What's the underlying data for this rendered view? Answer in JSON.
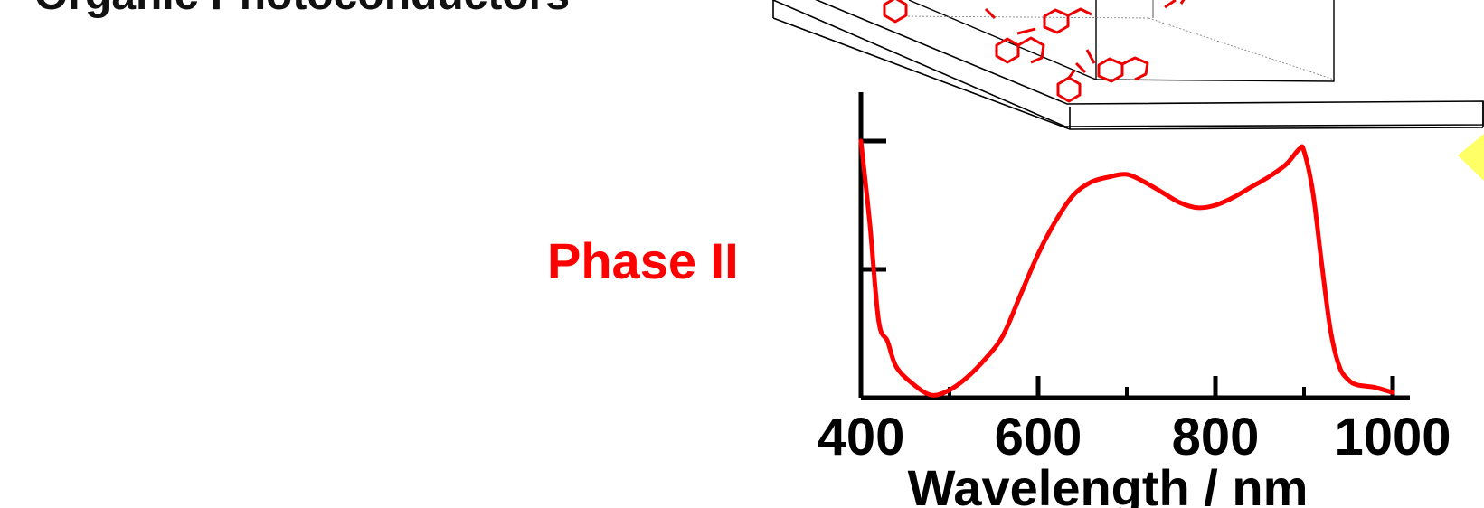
{
  "slide": {
    "heading_partial": "Organic Photoconductors",
    "phase_label": "Phase II",
    "accent_color": "#ff0000",
    "highlight_color": "#ffff66"
  },
  "illustration": {
    "icon": "molecular-film-on-substrate-icon"
  },
  "chart_data": {
    "type": "line",
    "title": "",
    "xlabel": "Wavelength / nm",
    "ylabel": "",
    "xlim": [
      400,
      1000
    ],
    "ylim": [
      0,
      1
    ],
    "x_ticks": [
      400,
      600,
      800,
      1000
    ],
    "x_minor_ticks": [
      500,
      700,
      900
    ],
    "y_ticks": [
      0,
      0.5,
      1
    ],
    "grid": false,
    "legend": "none",
    "series": [
      {
        "color": "#ff0000",
        "x": [
          400,
          410,
          420,
          430,
          440,
          460,
          480,
          500,
          520,
          540,
          560,
          580,
          600,
          620,
          640,
          660,
          680,
          700,
          720,
          740,
          760,
          780,
          800,
          820,
          840,
          860,
          880,
          895,
          900,
          910,
          920,
          930,
          940,
          950,
          960,
          980,
          1000
        ],
        "y": [
          1.0,
          0.68,
          0.3,
          0.22,
          0.12,
          0.05,
          0.01,
          0.03,
          0.08,
          0.15,
          0.24,
          0.4,
          0.56,
          0.69,
          0.79,
          0.84,
          0.86,
          0.87,
          0.84,
          0.8,
          0.76,
          0.74,
          0.75,
          0.78,
          0.82,
          0.86,
          0.91,
          0.97,
          0.96,
          0.8,
          0.52,
          0.26,
          0.12,
          0.07,
          0.05,
          0.04,
          0.02
        ]
      }
    ]
  }
}
